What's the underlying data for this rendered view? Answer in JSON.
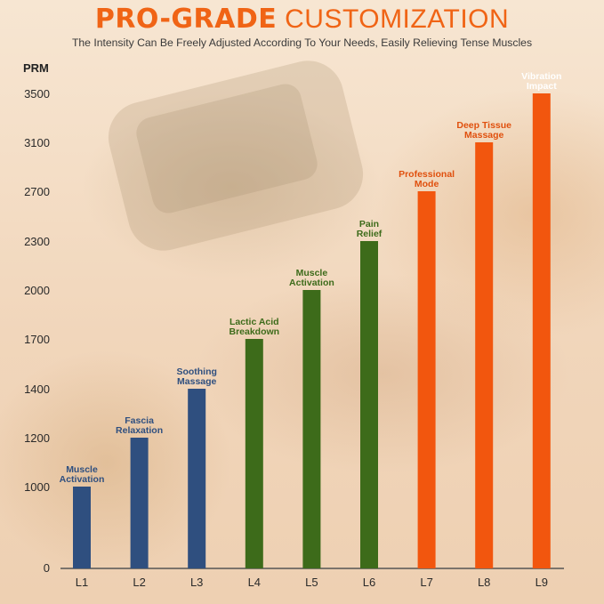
{
  "title": {
    "part1": "PRO-GRADE",
    "part2": "CUSTOMIZATION"
  },
  "subtitle": "The Intensity Can Be Freely Adjusted According To Your Needs, Easily Relieving Tense Muscles",
  "colors": {
    "title": "#f06415",
    "blue": "#2f4f7f",
    "green": "#3d6b1a",
    "orange": "#f2560e"
  },
  "chart_data": {
    "type": "bar",
    "ylabel": "PRM",
    "yticks": [
      0,
      1000,
      1200,
      1400,
      1700,
      2000,
      2300,
      2700,
      3100,
      3500
    ],
    "categories": [
      "L1",
      "L2",
      "L3",
      "L4",
      "L5",
      "L6",
      "L7",
      "L8",
      "L9"
    ],
    "values": [
      1000,
      1200,
      1400,
      1700,
      2000,
      2300,
      2700,
      3100,
      3500
    ],
    "labels": [
      [
        "Muscle",
        "Activation"
      ],
      [
        "Fascia",
        "Relaxation"
      ],
      [
        "Soothing",
        "Massage"
      ],
      [
        "Lactic Acid",
        "Breakdown"
      ],
      [
        "Muscle",
        "Activation"
      ],
      [
        "Pain",
        "Relief"
      ],
      [
        "Professional",
        "Mode"
      ],
      [
        "Deep Tissue",
        "Massage"
      ],
      [
        "Vibration",
        "Impact"
      ]
    ],
    "bar_colors": [
      "#2f4f7f",
      "#2f4f7f",
      "#2f4f7f",
      "#3d6b1a",
      "#3d6b1a",
      "#3d6b1a",
      "#f2560e",
      "#f2560e",
      "#f2560e"
    ],
    "label_colors": [
      "#2f4f7f",
      "#2f4f7f",
      "#2f4f7f",
      "#3d6b1a",
      "#3d6b1a",
      "#3d6b1a",
      "#e0500e",
      "#e0500e",
      "#ffffff"
    ],
    "grid": false,
    "legend": "none"
  }
}
